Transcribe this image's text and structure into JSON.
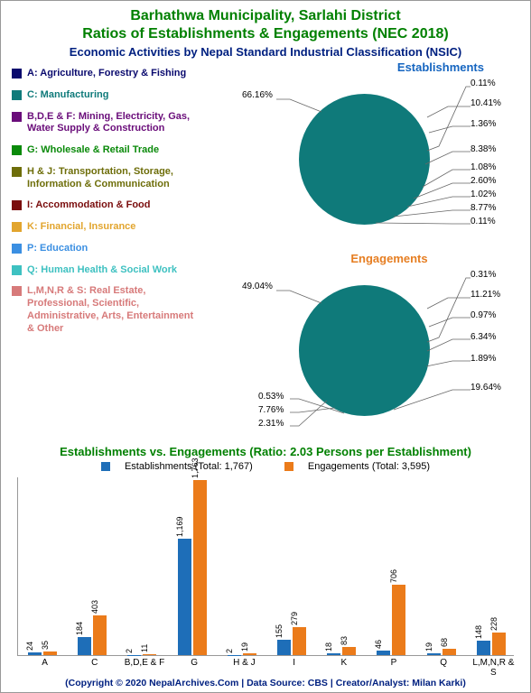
{
  "titles": {
    "line1": "Barhathwa Municipality, Sarlahi District",
    "line2": "Ratios of Establishments & Engagements (NEC 2018)",
    "subtitle": "Economic Activities by Nepal Standard Industrial Classification (NSIC)"
  },
  "legend": [
    {
      "color": "#0a0a6e",
      "label": "A: Agriculture, Forestry & Fishing"
    },
    {
      "color": "#0f7a7a",
      "label": "C: Manufacturing"
    },
    {
      "color": "#6a0d7a",
      "label": "B,D,E & F: Mining, Electricity, Gas, Water Supply & Construction"
    },
    {
      "color": "#0a8a0a",
      "label": "G: Wholesale & Retail Trade"
    },
    {
      "color": "#6e6e0a",
      "label": "H & J: Transportation, Storage, Information & Communication"
    },
    {
      "color": "#7a0d0d",
      "label": "I: Accommodation & Food"
    },
    {
      "color": "#e2a52e",
      "label": "K: Financial, Insurance"
    },
    {
      "color": "#3b8fe2",
      "label": "P: Education"
    },
    {
      "color": "#3ec1c1",
      "label": "Q: Human Health & Social Work"
    },
    {
      "color": "#d77a7a",
      "label": "L,M,N,R & S: Real Estate, Professional, Scientific, Administrative, Arts, Entertainment & Other"
    }
  ],
  "pieEstablishments": {
    "title": "Establishments",
    "title_color": "#1565c0",
    "slices": [
      {
        "color": "#0f7a7a",
        "pct": 10.41,
        "label": "10.41%"
      },
      {
        "color": "#0a0a6e",
        "pct": 1.36,
        "label": "1.36%"
      },
      {
        "color": "#d77a7a",
        "pct": 8.38,
        "label": "8.38%"
      },
      {
        "color": "#3ec1c1",
        "pct": 1.08,
        "label": "1.08%"
      },
      {
        "color": "#3b8fe2",
        "pct": 2.6,
        "label": "2.60%"
      },
      {
        "color": "#e2a52e",
        "pct": 1.02,
        "label": "1.02%"
      },
      {
        "color": "#7a0d0d",
        "pct": 8.77,
        "label": "8.77%"
      },
      {
        "color": "#6e6e0a",
        "pct": 0.11,
        "label": "0.11%"
      },
      {
        "color": "#0a8a0a",
        "pct": 66.16,
        "label": "66.16%"
      },
      {
        "color": "#6a0d7a",
        "pct": 0.11,
        "label": "0.11%"
      }
    ]
  },
  "pieEngagements": {
    "title": "Engagements",
    "title_color": "#e67e22",
    "slices": [
      {
        "color": "#0f7a7a",
        "pct": 11.21,
        "label": "11.21%"
      },
      {
        "color": "#0a0a6e",
        "pct": 0.97,
        "label": "0.97%"
      },
      {
        "color": "#d77a7a",
        "pct": 6.34,
        "label": "6.34%"
      },
      {
        "color": "#3ec1c1",
        "pct": 1.89,
        "label": "1.89%"
      },
      {
        "color": "#3b8fe2",
        "pct": 19.64,
        "label": "19.64%"
      },
      {
        "color": "#e2a52e",
        "pct": 2.31,
        "label": "2.31%"
      },
      {
        "color": "#7a0d0d",
        "pct": 7.76,
        "label": "7.76%"
      },
      {
        "color": "#6e6e0a",
        "pct": 0.53,
        "label": "0.53%"
      },
      {
        "color": "#0a8a0a",
        "pct": 49.04,
        "label": "49.04%"
      },
      {
        "color": "#6a0d7a",
        "pct": 0.31,
        "label": "0.31%"
      }
    ]
  },
  "ratio": {
    "title": "Establishments vs. Engagements (Ratio: 2.03 Persons per Establishment)",
    "legend_est": "Establishments (Total: 1,767)",
    "legend_eng": "Engagements (Total: 3,595)",
    "color_est": "#1e6eb8",
    "color_eng": "#eb7b1a"
  },
  "barChart": {
    "max": 1800,
    "categories": [
      "A",
      "C",
      "B,D,E & F",
      "G",
      "H & J",
      "I",
      "K",
      "P",
      "Q",
      "L,M,N,R & S"
    ],
    "est": [
      24,
      184,
      2,
      1169,
      2,
      155,
      18,
      46,
      19,
      148
    ],
    "eng": [
      35,
      403,
      11,
      1763,
      19,
      279,
      83,
      706,
      68,
      228
    ],
    "est_labels": [
      "24",
      "184",
      "2",
      "1,169",
      "2",
      "155",
      "18",
      "46",
      "19",
      "148"
    ],
    "eng_labels": [
      "35",
      "403",
      "11",
      "1,763",
      "19",
      "279",
      "83",
      "706",
      "68",
      "228"
    ]
  },
  "footer": "(Copyright © 2020 NepalArchives.Com | Data Source: CBS | Creator/Analyst: Milan Karki)"
}
